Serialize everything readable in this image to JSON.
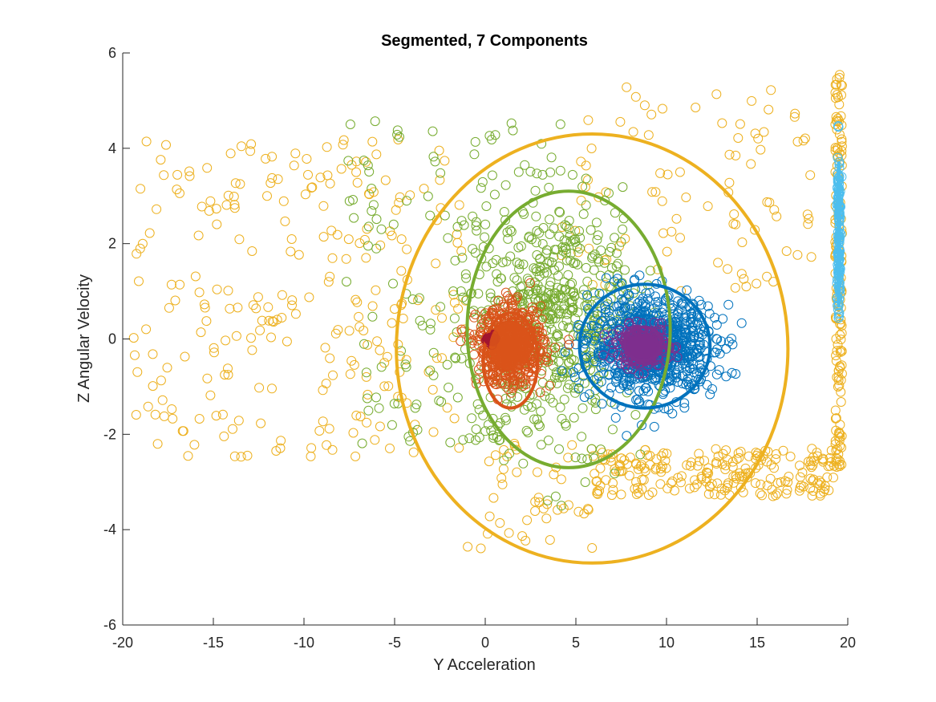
{
  "chart_data": {
    "type": "scatter",
    "title": "Segmented, 7 Components",
    "xlabel": "Y Acceleration",
    "ylabel": "Z Angular Velocity",
    "xlim": [
      -20,
      20
    ],
    "ylim": [
      -6,
      6
    ],
    "xticks": [
      -20,
      -15,
      -10,
      -5,
      0,
      5,
      10,
      15,
      20
    ],
    "yticks": [
      -6,
      -4,
      -2,
      0,
      2,
      4,
      6
    ],
    "grid": false,
    "marker": "open-circle",
    "clusters": [
      {
        "color": "#EDB120",
        "center": [
          0,
          0
        ],
        "spread": [
          0,
          0
        ],
        "count": 0,
        "ellipse": {
          "center": [
            5.9,
            -0.2
          ],
          "semi_axes": [
            10.8,
            4.5
          ],
          "angle_deg": 0
        }
      },
      {
        "color": "#77AC30",
        "center": [
          3.5,
          0.4
        ],
        "spread": [
          2.5,
          1.3
        ],
        "count": 600,
        "ellipse": {
          "center": [
            4.6,
            0.2
          ],
          "semi_axes": [
            5.6,
            2.9
          ],
          "angle_deg": 0
        }
      },
      {
        "color": "#0072BD",
        "center": [
          9.2,
          -0.15
        ],
        "spread": [
          1.7,
          0.5
        ],
        "count": 900,
        "ellipse": {
          "center": [
            8.8,
            -0.15
          ],
          "semi_axes": [
            3.6,
            1.3
          ],
          "angle_deg": 0
        }
      },
      {
        "color": "#D95319",
        "center": [
          1.4,
          -0.15
        ],
        "spread": [
          0.9,
          0.4
        ],
        "count": 600,
        "ellipse": {
          "center": [
            1.4,
            -0.45
          ],
          "semi_axes": [
            1.5,
            1.0
          ],
          "angle_deg": 0
        }
      },
      {
        "color": "#7E2F8E",
        "center": [
          8.7,
          -0.15
        ],
        "spread": [
          0.7,
          0.2
        ],
        "count": 300,
        "ellipse": {
          "center": [
            8.7,
            -0.1
          ],
          "semi_axes": [
            1.0,
            0.35
          ],
          "angle_deg": 0
        }
      },
      {
        "color": "#4DBEEE",
        "center": [
          19.5,
          2.2
        ],
        "spread": [
          0.05,
          1.0
        ],
        "count": 120,
        "ellipse": {
          "center": [
            19.5,
            2.2
          ],
          "semi_axes": [
            0.05,
            1.5
          ],
          "angle_deg": 0
        }
      },
      {
        "color": "#A2142F",
        "center": [
          0.3,
          0
        ],
        "spread": [
          0.12,
          0.05
        ],
        "count": 30,
        "ellipse": {
          "center": [
            0.3,
            0
          ],
          "semi_axes": [
            0.3,
            0.1
          ],
          "angle_deg": 0
        }
      }
    ],
    "extra_points": {
      "yellow_left_region": {
        "x_range": [
          -19.5,
          -1
        ],
        "y_range": [
          -2.5,
          4.2
        ],
        "count": 260,
        "color": "#EDB120"
      },
      "yellow_bottom_band": {
        "x_range": [
          6,
          19.5
        ],
        "y_range": [
          -3.3,
          -2.3
        ],
        "count": 220,
        "color": "#EDB120"
      },
      "yellow_right_column": {
        "x_range": [
          19.3,
          19.7
        ],
        "y_range": [
          -2.7,
          5.8
        ],
        "count": 150,
        "color": "#EDB120"
      },
      "yellow_upper_right": {
        "x_range": [
          4,
          18
        ],
        "y_range": [
          1,
          5.3
        ],
        "count": 90,
        "color": "#EDB120"
      },
      "yellow_lower_mid": {
        "x_range": [
          -1,
          6
        ],
        "y_range": [
          -4.4,
          -2
        ],
        "count": 45,
        "color": "#EDB120"
      },
      "green_left_scatter": {
        "x_range": [
          -8,
          3.5
        ],
        "y_range": [
          -2.2,
          4.6
        ],
        "count": 110,
        "color": "#77AC30"
      }
    }
  }
}
